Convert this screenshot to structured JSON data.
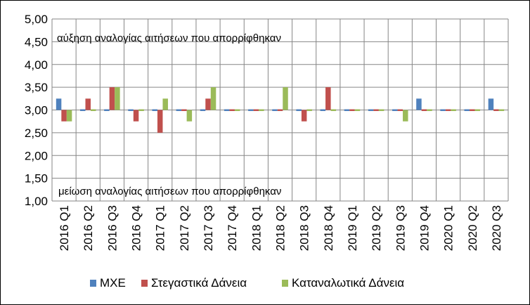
{
  "chart_data": {
    "type": "bar",
    "title": "",
    "xlabel": "",
    "ylabel": "",
    "baseline": 3.0,
    "ylim": [
      1.0,
      5.0
    ],
    "ytick_step": 0.5,
    "ytick_labels": [
      "1,00",
      "1,50",
      "2,00",
      "2,50",
      "3,00",
      "3,50",
      "4,00",
      "4,50",
      "5,00"
    ],
    "grid": true,
    "legend_position": "bottom",
    "annotations": {
      "top": "αύξηση αναλογίας αιτήσεων που απορρίφθηκαν",
      "bottom": "μείωση αναλογίας αιτήσεων που απορρίφθηκαν"
    },
    "categories": [
      "2016 Q1",
      "2016 Q2",
      "2016 Q3",
      "2016 Q4",
      "2017 Q1",
      "2017 Q2",
      "2017 Q3",
      "2017 Q4",
      "2018 Q1",
      "2018 Q2",
      "2018 Q3",
      "2018 Q4",
      "2019 Q1",
      "2019 Q2",
      "2019 Q3",
      "2019 Q4",
      "2020 Q1",
      "2020 Q2",
      "2020 Q3"
    ],
    "series": [
      {
        "name": "ΜΧΕ",
        "color": "#4F81BD",
        "values": [
          3.25,
          3.0,
          3.0,
          3.0,
          3.0,
          3.0,
          3.0,
          3.0,
          3.0,
          3.0,
          3.0,
          3.0,
          3.0,
          3.0,
          3.0,
          3.25,
          3.0,
          3.0,
          3.25
        ]
      },
      {
        "name": "Στεγαστικά Δάνεια",
        "color": "#C0504D",
        "values": [
          2.75,
          3.25,
          3.5,
          2.75,
          2.5,
          3.0,
          3.25,
          3.0,
          3.0,
          3.0,
          2.75,
          3.5,
          3.0,
          3.0,
          3.0,
          3.0,
          3.0,
          3.0,
          3.0
        ]
      },
      {
        "name": "Καταναλωτικά Δάνεια",
        "color": "#9BBB59",
        "values": [
          2.75,
          3.0,
          3.5,
          3.0,
          3.25,
          2.75,
          3.5,
          3.0,
          3.0,
          3.5,
          3.0,
          3.0,
          3.0,
          3.0,
          2.75,
          3.0,
          3.0,
          3.0,
          3.0
        ]
      }
    ]
  }
}
